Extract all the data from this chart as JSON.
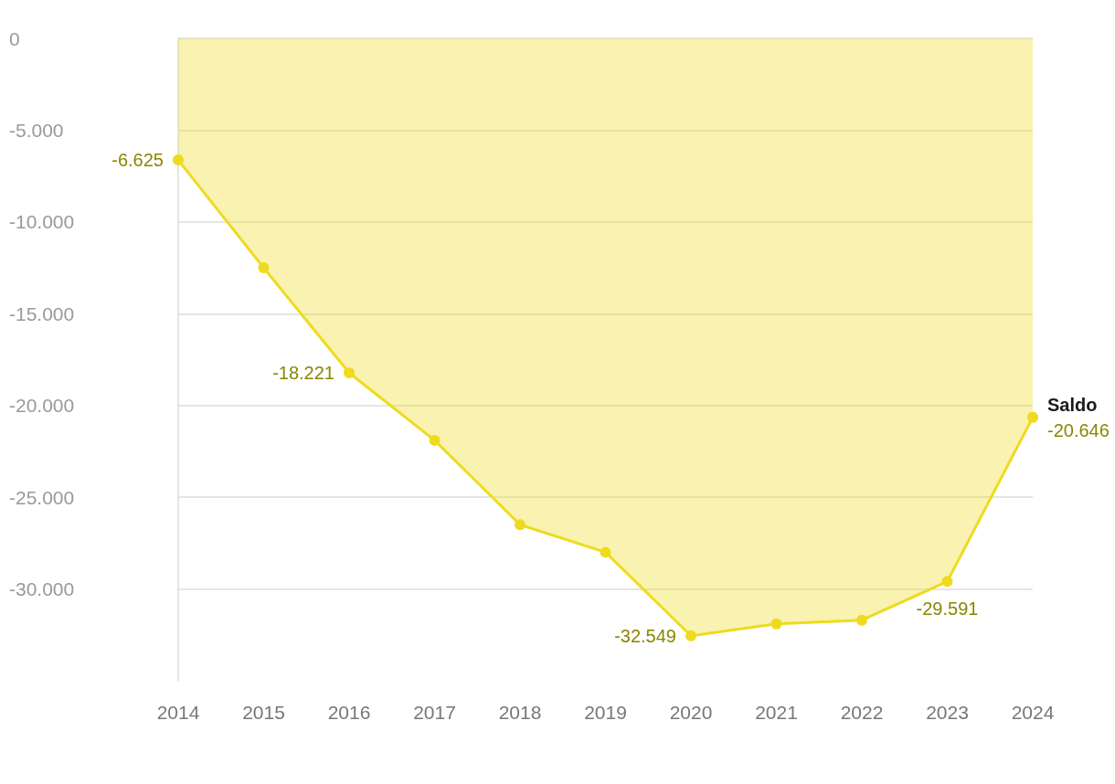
{
  "chart_data": {
    "type": "area",
    "categories": [
      "2014",
      "2015",
      "2016",
      "2017",
      "2018",
      "2019",
      "2020",
      "2021",
      "2022",
      "2023",
      "2024"
    ],
    "series": [
      {
        "name": "Saldo",
        "color": "#eedb1e",
        "values": [
          -6625,
          -12500,
          -18221,
          -21900,
          -26500,
          -28000,
          -32549,
          -31900,
          -31700,
          -29591,
          -20646
        ],
        "value_labels": [
          "-6.625",
          null,
          "-18.221",
          null,
          null,
          null,
          "-32.549",
          null,
          null,
          "-29.591",
          "-20.646"
        ]
      }
    ],
    "ylim": [
      -35000,
      0
    ],
    "yticks": [
      {
        "value": -30000,
        "label": "-30.000"
      },
      {
        "value": -25000,
        "label": "-25.000"
      },
      {
        "value": -20000,
        "label": "-20.000"
      },
      {
        "value": -15000,
        "label": "-15.000"
      },
      {
        "value": -10000,
        "label": "-10.000"
      },
      {
        "value": -5000,
        "label": "-5.000"
      },
      0
    ],
    "grid": "y",
    "legend": false,
    "marker": "circle",
    "line_style": "solid"
  }
}
